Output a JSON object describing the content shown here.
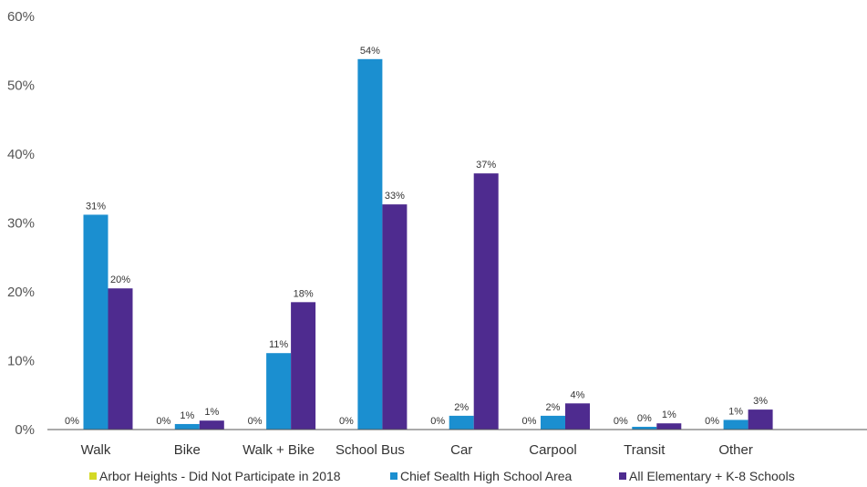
{
  "chart_data": {
    "type": "bar",
    "categories": [
      "Walk",
      "Bike",
      "Walk + Bike",
      "School Bus",
      "Car",
      "Carpool",
      "Transit",
      "Other"
    ],
    "series": [
      {
        "name": "Arbor Heights - Did Not Participate in 2018",
        "color": "#d4d925",
        "values": [
          0,
          0,
          0,
          0,
          0,
          0,
          0,
          0
        ],
        "labels": [
          "0%",
          "0%",
          "0%",
          "0%",
          "0%",
          "0%",
          "0%",
          "0%"
        ]
      },
      {
        "name": "Chief Sealth High School Area",
        "color": "#1b8fd0",
        "values": [
          31.2,
          0.8,
          11.1,
          53.8,
          2.0,
          2.0,
          0.4,
          1.4
        ],
        "labels": [
          "31%",
          "1%",
          "11%",
          "54%",
          "2%",
          "2%",
          "0%",
          "1%"
        ]
      },
      {
        "name": "All Elementary + K-8 Schools",
        "color": "#4e2b8f",
        "values": [
          20.5,
          1.3,
          18.5,
          32.7,
          37.2,
          3.8,
          0.9,
          2.9
        ],
        "labels": [
          "20%",
          "1%",
          "18%",
          "33%",
          "37%",
          "4%",
          "1%",
          "3%"
        ]
      }
    ],
    "y_ticks": [
      "0%",
      "10%",
      "20%",
      "30%",
      "40%",
      "50%",
      "60%"
    ],
    "ylim": [
      0,
      60
    ],
    "grid": false,
    "legend": "bottom",
    "xlabel": "",
    "ylabel": ""
  }
}
